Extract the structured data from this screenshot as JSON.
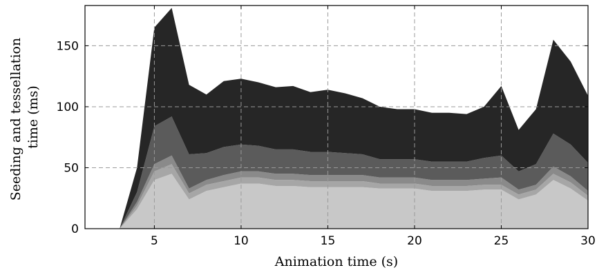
{
  "chart_data": {
    "type": "area",
    "stacked": true,
    "title": "",
    "xlabel": "Animation time (s)",
    "ylabel_lines": [
      "Seeding and tessellation",
      "time (ms)"
    ],
    "xlim": [
      1,
      30
    ],
    "ylim": [
      0,
      183
    ],
    "xticks": [
      5,
      10,
      15,
      20,
      25,
      30
    ],
    "yticks": [
      0,
      50,
      100,
      150
    ],
    "grid": true,
    "legend": "none",
    "x": [
      3,
      4,
      5,
      6,
      7,
      8,
      9,
      10,
      11,
      12,
      13,
      14,
      15,
      16,
      17,
      18,
      19,
      20,
      21,
      22,
      23,
      24,
      25,
      26,
      27,
      28,
      29,
      30
    ],
    "series": [
      {
        "color": "#c8c8c8",
        "values": [
          0,
          16,
          40,
          45,
          24,
          31,
          34,
          37,
          37,
          35,
          35,
          34,
          34,
          34,
          34,
          33,
          33,
          33,
          31,
          31,
          31,
          32,
          32,
          24,
          28,
          40,
          33,
          23
        ]
      },
      {
        "color": "#a6a6a6",
        "values": [
          0,
          3,
          7,
          8,
          5,
          5,
          5,
          5,
          5,
          5,
          5,
          5,
          5,
          5,
          5,
          4,
          4,
          4,
          4,
          4,
          4,
          4,
          4,
          4,
          4,
          5,
          5,
          4
        ]
      },
      {
        "color": "#8a8a8a",
        "values": [
          0,
          3,
          6,
          7,
          4,
          4,
          5,
          5,
          5,
          5,
          5,
          5,
          5,
          5,
          5,
          5,
          5,
          5,
          5,
          5,
          5,
          5,
          6,
          4,
          4,
          6,
          5,
          4
        ]
      },
      {
        "color": "#5b5b5b",
        "values": [
          0,
          8,
          31,
          32,
          28,
          22,
          23,
          22,
          21,
          20,
          20,
          19,
          19,
          18,
          17,
          15,
          15,
          15,
          15,
          15,
          15,
          17,
          18,
          15,
          17,
          27,
          26,
          23
        ]
      },
      {
        "color": "#262626",
        "values": [
          0,
          20,
          81,
          89,
          57,
          48,
          54,
          54,
          52,
          51,
          52,
          49,
          51,
          49,
          46,
          43,
          41,
          41,
          40,
          40,
          39,
          42,
          57,
          34,
          45,
          77,
          68,
          55
        ]
      }
    ]
  }
}
